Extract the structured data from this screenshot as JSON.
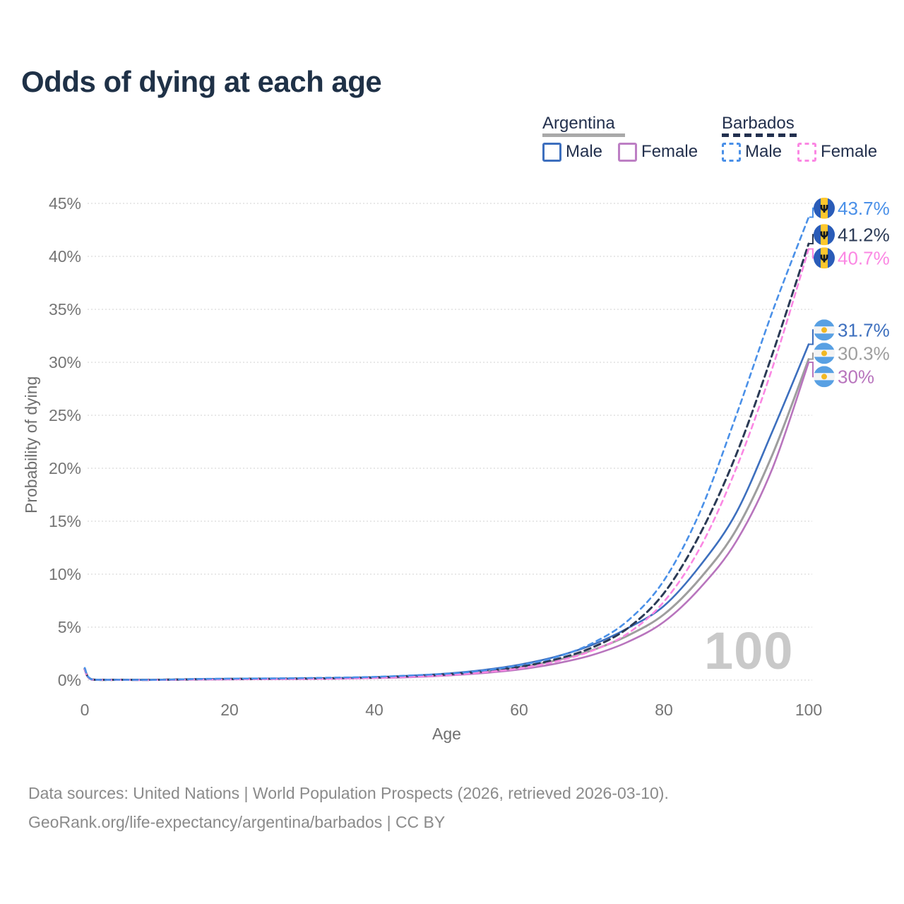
{
  "title": "Odds of dying at each age",
  "legend": {
    "groups": [
      {
        "id": "argentina",
        "label": "Argentina",
        "line_style": "solid",
        "line_color": "#a9a9a9",
        "items": [
          {
            "label": "Male",
            "color": "#3d6fbe",
            "style": "solid"
          },
          {
            "label": "Female",
            "color": "#bd7fc4",
            "style": "solid"
          }
        ]
      },
      {
        "id": "barbados",
        "label": "Barbados",
        "line_style": "dashed",
        "line_color": "#22304f",
        "items": [
          {
            "label": "Male",
            "color": "#4a90e8",
            "style": "dashed"
          },
          {
            "label": "Female",
            "color": "#fb87e3",
            "style": "dashed"
          }
        ]
      }
    ]
  },
  "chart_data": {
    "type": "line",
    "title": "Odds of dying at each age",
    "xlabel": "Age",
    "ylabel": "Probability of dying",
    "x_ticks": [
      0,
      20,
      40,
      60,
      80,
      100
    ],
    "y_ticks_pct": [
      0,
      5,
      10,
      15,
      20,
      25,
      30,
      35,
      40,
      45
    ],
    "xlim": [
      0,
      100
    ],
    "ylim_pct": [
      0,
      45
    ],
    "grid": "horizontal-dotted",
    "hover_age_indicator": "100",
    "legend_position": "top-right",
    "x": [
      0,
      1,
      5,
      10,
      15,
      20,
      25,
      30,
      35,
      40,
      45,
      50,
      55,
      60,
      65,
      70,
      75,
      80,
      85,
      90,
      95,
      100
    ],
    "series": [
      {
        "name": "Argentina Both sexes",
        "country": "Argentina",
        "sex": "Both sexes",
        "style": "solid",
        "color": "#9e9e9e",
        "end_label": "30.3%",
        "values_pct": [
          1.0,
          0.05,
          0.03,
          0.03,
          0.07,
          0.1,
          0.12,
          0.14,
          0.17,
          0.23,
          0.35,
          0.52,
          0.8,
          1.2,
          1.85,
          2.8,
          4.2,
          6.2,
          9.6,
          14.2,
          21.3,
          30.3
        ]
      },
      {
        "name": "Argentina Female",
        "country": "Argentina",
        "sex": "Female",
        "style": "solid",
        "color": "#b874bd",
        "end_label": "30%",
        "values_pct": [
          0.95,
          0.05,
          0.02,
          0.02,
          0.05,
          0.07,
          0.09,
          0.11,
          0.14,
          0.19,
          0.28,
          0.43,
          0.66,
          1.0,
          1.55,
          2.35,
          3.6,
          5.5,
          8.7,
          13.1,
          20.0,
          30.0
        ]
      },
      {
        "name": "Argentina Male",
        "country": "Argentina",
        "sex": "Male",
        "style": "solid",
        "color": "#3d6fbe",
        "end_label": "31.7%",
        "values_pct": [
          1.1,
          0.06,
          0.03,
          0.03,
          0.09,
          0.13,
          0.15,
          0.17,
          0.21,
          0.28,
          0.42,
          0.62,
          0.95,
          1.45,
          2.2,
          3.3,
          4.9,
          7.0,
          10.8,
          15.8,
          23.5,
          31.7
        ]
      },
      {
        "name": "Barbados Both sexes",
        "country": "Barbados",
        "sex": "Both sexes",
        "style": "dashed",
        "color": "#2b3a55",
        "end_label": "41.2%",
        "values_pct": [
          1.05,
          0.06,
          0.03,
          0.03,
          0.08,
          0.11,
          0.13,
          0.15,
          0.19,
          0.25,
          0.38,
          0.54,
          0.82,
          1.25,
          1.95,
          3.05,
          4.9,
          8.2,
          13.8,
          21.3,
          30.8,
          41.2
        ]
      },
      {
        "name": "Barbados Female",
        "country": "Barbados",
        "sex": "Female",
        "style": "dashed",
        "color": "#fb87e3",
        "end_label": "40.7%",
        "values_pct": [
          1.0,
          0.05,
          0.02,
          0.02,
          0.06,
          0.08,
          0.1,
          0.12,
          0.15,
          0.21,
          0.32,
          0.47,
          0.73,
          1.1,
          1.75,
          2.75,
          4.4,
          7.4,
          12.5,
          20.0,
          29.5,
          40.7
        ]
      },
      {
        "name": "Barbados Male",
        "country": "Barbados",
        "sex": "Male",
        "style": "dashed",
        "color": "#4a90e8",
        "end_label": "43.7%",
        "values_pct": [
          1.15,
          0.07,
          0.03,
          0.03,
          0.1,
          0.14,
          0.16,
          0.19,
          0.24,
          0.31,
          0.44,
          0.6,
          0.9,
          1.4,
          2.15,
          3.45,
          5.6,
          9.4,
          15.9,
          25.0,
          34.8,
          43.7
        ]
      }
    ],
    "flag_colors": {
      "barbados": {
        "blue": "#2a5cb8",
        "yellow": "#ffc72c",
        "trident": "#101820",
        "trident_glyph": "Ψ"
      },
      "argentina": {
        "blue": "#58a0e3",
        "white": "#f4f4f4",
        "sun": "#f2b824"
      }
    }
  },
  "source": {
    "line1": "Data sources: United Nations | World Population Prospects (2026, retrieved 2026-03-10).",
    "line2": "GeoRank.org/life-expectancy/argentina/barbados | CC BY"
  }
}
